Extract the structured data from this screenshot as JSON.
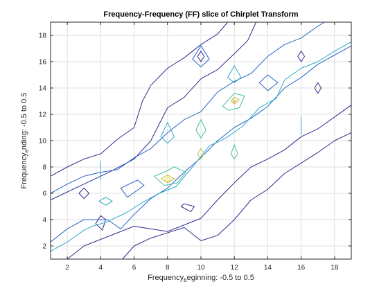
{
  "chart_data": {
    "type": "contour",
    "title": "Frequency-Frequency (FF) slice of Chirplet Transform",
    "xlabel": {
      "main": "Frequency",
      "sub": "b",
      "rest": "eginning: -0.5 to 0.5"
    },
    "ylabel": {
      "main": "Frequency",
      "sub": "e",
      "rest": "nding: -0.5 to 0.5"
    },
    "xlim": [
      1,
      19
    ],
    "ylim": [
      1,
      19
    ],
    "xticks": [
      2,
      4,
      6,
      8,
      10,
      12,
      14,
      16,
      18
    ],
    "yticks": [
      2,
      4,
      6,
      8,
      10,
      12,
      14,
      16,
      18
    ],
    "grid": true,
    "colors": {
      "level1": "#2c2c8e",
      "level2": "#2a63c8",
      "level3": "#2aa9c8",
      "level4": "#43c096",
      "level5": "#b9c24a",
      "level6": "#f2d73a",
      "level7": "#e8a235"
    },
    "contours": [
      {
        "level": 1,
        "points": [
          [
            1,
            5.5
          ],
          [
            3,
            6.7
          ],
          [
            4.5,
            7.6
          ],
          [
            6,
            8.6
          ],
          [
            7,
            10
          ],
          [
            8,
            12.5
          ],
          [
            9,
            13.3
          ],
          [
            10,
            14.7
          ],
          [
            11,
            15.4
          ],
          [
            12,
            16.6
          ],
          [
            12.8,
            17.6
          ],
          [
            13.3,
            19
          ]
        ],
        "closed": false
      },
      {
        "level": 1,
        "points": [
          [
            1,
            7.3
          ],
          [
            2,
            8
          ],
          [
            3,
            8.6
          ],
          [
            4,
            9
          ],
          [
            5,
            10.1
          ],
          [
            6,
            11
          ],
          [
            6.5,
            13
          ],
          [
            7,
            14.2
          ],
          [
            8,
            15.5
          ],
          [
            9,
            16.3
          ],
          [
            10,
            17.3
          ],
          [
            11,
            18.1
          ],
          [
            11.6,
            19
          ]
        ],
        "closed": false
      },
      {
        "level": 1,
        "points": [
          [
            2,
            1
          ],
          [
            3,
            2
          ],
          [
            4,
            2.5
          ],
          [
            6,
            3.5
          ],
          [
            8,
            3.1
          ],
          [
            10,
            4.1
          ],
          [
            11,
            5.5
          ],
          [
            12,
            6.8
          ],
          [
            13,
            8
          ],
          [
            14,
            8.6
          ],
          [
            15,
            9.3
          ],
          [
            16,
            10.3
          ],
          [
            17,
            10.9
          ],
          [
            18,
            11.8
          ],
          [
            19,
            12.7
          ]
        ],
        "closed": false
      },
      {
        "level": 1,
        "points": [
          [
            5.3,
            1
          ],
          [
            6,
            2
          ],
          [
            7,
            2.6
          ],
          [
            9,
            3.4
          ],
          [
            10,
            2.4
          ],
          [
            11,
            2.8
          ],
          [
            12,
            4
          ],
          [
            13,
            5.5
          ],
          [
            14,
            6.3
          ],
          [
            15,
            7.5
          ],
          [
            16,
            8.3
          ],
          [
            17,
            9.1
          ],
          [
            18,
            10
          ],
          [
            19,
            10.6
          ]
        ],
        "closed": false
      },
      {
        "level": 1,
        "points": [
          [
            2.7,
            6
          ],
          [
            3,
            5.6
          ],
          [
            3.3,
            6
          ],
          [
            3,
            6.4
          ]
        ],
        "closed": true
      },
      {
        "level": 1,
        "points": [
          [
            3.7,
            3.7
          ],
          [
            4.1,
            3.2
          ],
          [
            4.3,
            4
          ],
          [
            4,
            4.3
          ]
        ],
        "closed": true
      },
      {
        "level": 1,
        "points": [
          [
            8.8,
            5
          ],
          [
            9.4,
            4.6
          ],
          [
            9.6,
            5
          ],
          [
            9,
            5.2
          ]
        ],
        "closed": true
      },
      {
        "level": 1,
        "points": [
          [
            9.8,
            16.4
          ],
          [
            10,
            16.8
          ],
          [
            10.2,
            16.4
          ],
          [
            10,
            16
          ]
        ],
        "closed": true
      },
      {
        "level": 1,
        "points": [
          [
            15.8,
            16.4
          ],
          [
            16,
            16.8
          ],
          [
            16.2,
            16.4
          ],
          [
            16,
            16
          ]
        ],
        "closed": true
      },
      {
        "level": 1,
        "points": [
          [
            16.8,
            14
          ],
          [
            17,
            14.4
          ],
          [
            17.2,
            14
          ],
          [
            17,
            13.6
          ]
        ],
        "closed": true
      },
      {
        "level": 2,
        "points": [
          [
            1,
            2.3
          ],
          [
            2,
            3.3
          ],
          [
            3,
            4
          ],
          [
            4.4,
            4
          ],
          [
            5.2,
            3.3
          ],
          [
            6,
            4.4
          ],
          [
            7,
            5.6
          ],
          [
            8,
            6.4
          ],
          [
            9,
            7.6
          ],
          [
            10,
            8.7
          ],
          [
            11,
            10
          ],
          [
            12,
            11
          ],
          [
            13,
            11.7
          ],
          [
            14,
            12.6
          ],
          [
            15,
            14
          ],
          [
            16,
            14.8
          ],
          [
            17,
            15.8
          ],
          [
            18,
            16.5
          ],
          [
            19,
            17.2
          ]
        ],
        "closed": false
      },
      {
        "level": 2,
        "points": [
          [
            1,
            6
          ],
          [
            2,
            6.7
          ],
          [
            3,
            7.3
          ],
          [
            4,
            7.6
          ],
          [
            5,
            7.8
          ],
          [
            6,
            8.7
          ],
          [
            7,
            9.4
          ],
          [
            8,
            10.6
          ],
          [
            9,
            11.6
          ],
          [
            10,
            12.2
          ],
          [
            11,
            13.7
          ],
          [
            12,
            14.5
          ],
          [
            13,
            15.1
          ],
          [
            14,
            16.4
          ],
          [
            15,
            17.3
          ],
          [
            16,
            17.8
          ],
          [
            17,
            18.7
          ],
          [
            17.4,
            19
          ]
        ],
        "closed": false
      },
      {
        "level": 2,
        "points": [
          [
            5.6,
            5.7
          ],
          [
            6.6,
            6.6
          ],
          [
            6.2,
            7
          ],
          [
            5.2,
            6.4
          ]
        ],
        "closed": true
      },
      {
        "level": 2,
        "points": [
          [
            14,
            13.8
          ],
          [
            14.6,
            14.4
          ],
          [
            14,
            15
          ],
          [
            13.5,
            14.4
          ]
        ],
        "closed": true
      },
      {
        "level": 2,
        "points": [
          [
            9.5,
            16.2
          ],
          [
            10,
            17.2
          ],
          [
            10.5,
            16.2
          ],
          [
            10,
            15.6
          ]
        ],
        "closed": true
      },
      {
        "level": 3,
        "points": [
          [
            1,
            1.6
          ],
          [
            2,
            2.3
          ],
          [
            3,
            3.2
          ],
          [
            3.5,
            3.5
          ],
          [
            4.3,
            3.8
          ],
          [
            5.5,
            4.5
          ],
          [
            6.5,
            5.3
          ],
          [
            7.5,
            6
          ],
          [
            8.5,
            6.5
          ],
          [
            9.5,
            8
          ],
          [
            10.5,
            9.6
          ],
          [
            11.5,
            10.2
          ],
          [
            12.5,
            11.1
          ],
          [
            13.5,
            12.5
          ],
          [
            14.5,
            13.2
          ],
          [
            15,
            14.6
          ],
          [
            16,
            15.5
          ],
          [
            17,
            16
          ],
          [
            18,
            16.8
          ],
          [
            19,
            17.5
          ]
        ],
        "closed": false
      },
      {
        "level": 3,
        "points": [
          [
            3.9,
            5.4
          ],
          [
            4.3,
            5.7
          ],
          [
            4.7,
            5.4
          ],
          [
            4.3,
            5.1
          ]
        ],
        "closed": true
      },
      {
        "level": 3,
        "points": [
          [
            4,
            7
          ],
          [
            4,
            8.4
          ]
        ],
        "closed": false
      },
      {
        "level": 3,
        "points": [
          [
            7.6,
            10.3
          ],
          [
            8,
            11.4
          ],
          [
            8.4,
            10.3
          ],
          [
            8,
            9.8
          ]
        ],
        "closed": true
      },
      {
        "level": 3,
        "points": [
          [
            11.6,
            14.8
          ],
          [
            12,
            15.7
          ],
          [
            12.4,
            14.8
          ],
          [
            12,
            14.4
          ]
        ],
        "closed": true
      },
      {
        "level": 3,
        "points": [
          [
            16,
            10.4
          ],
          [
            16,
            11.8
          ]
        ],
        "closed": false
      },
      {
        "level": 4,
        "points": [
          [
            7.2,
            7.3
          ],
          [
            7.8,
            7.6
          ],
          [
            8.4,
            8
          ],
          [
            9.1,
            7.6
          ],
          [
            8.6,
            6.8
          ],
          [
            7.8,
            6.6
          ]
        ],
        "closed": true
      },
      {
        "level": 4,
        "points": [
          [
            9.7,
            10.8
          ],
          [
            10,
            11.6
          ],
          [
            10.3,
            10.8
          ],
          [
            10,
            10.2
          ]
        ],
        "closed": true
      },
      {
        "level": 4,
        "points": [
          [
            11.3,
            12.6
          ],
          [
            12,
            13.6
          ],
          [
            12.6,
            13.4
          ],
          [
            12.3,
            12.5
          ],
          [
            11.7,
            12.3
          ]
        ],
        "closed": true
      },
      {
        "level": 4,
        "points": [
          [
            11.8,
            9
          ],
          [
            12,
            9.7
          ],
          [
            12.2,
            9
          ],
          [
            12,
            8.6
          ]
        ],
        "closed": true
      },
      {
        "level": 5,
        "points": [
          [
            7.6,
            7.1
          ],
          [
            8,
            7.4
          ],
          [
            8.4,
            7.1
          ],
          [
            8,
            6.8
          ]
        ],
        "closed": true
      },
      {
        "level": 5,
        "points": [
          [
            9.8,
            9
          ],
          [
            10,
            9.4
          ],
          [
            10.2,
            9
          ],
          [
            10,
            8.6
          ]
        ],
        "closed": true
      },
      {
        "level": 5,
        "points": [
          [
            11.8,
            13
          ],
          [
            12,
            13.3
          ],
          [
            12.3,
            13.1
          ],
          [
            12,
            12.8
          ]
        ],
        "closed": true
      },
      {
        "level": 6,
        "points": [
          [
            7.8,
            7.05
          ],
          [
            8,
            7.25
          ],
          [
            8.2,
            7.05
          ],
          [
            8,
            6.9
          ]
        ],
        "closed": true
      },
      {
        "level": 7,
        "points": [
          [
            11.9,
            13
          ],
          [
            12,
            13.1
          ],
          [
            12.1,
            13
          ],
          [
            12,
            12.9
          ]
        ],
        "closed": true
      }
    ]
  }
}
